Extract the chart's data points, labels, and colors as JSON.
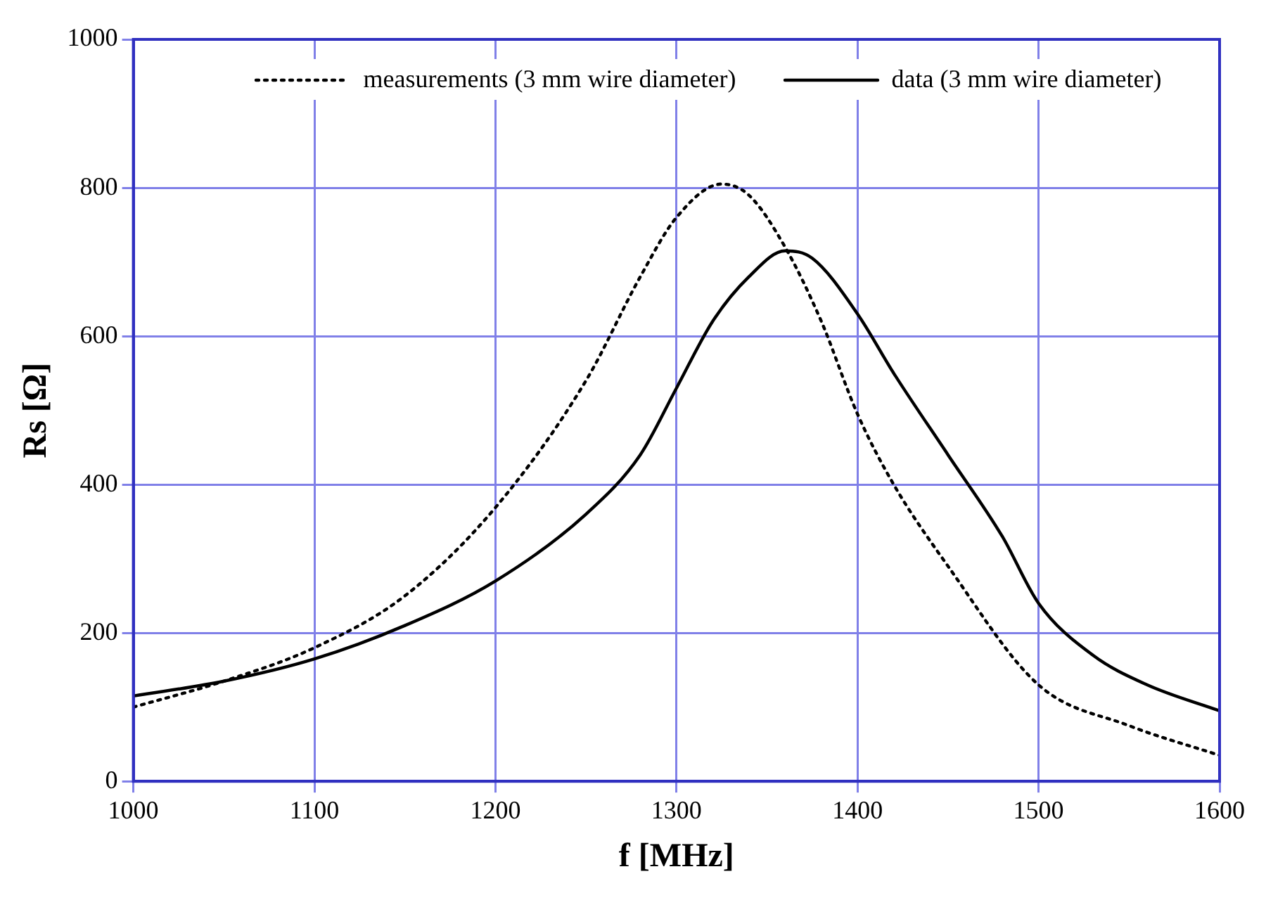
{
  "chart_data": {
    "type": "line",
    "xlabel": "f [MHz]",
    "ylabel": "Rs [Ω]",
    "xlim": [
      1000,
      1600
    ],
    "ylim": [
      0,
      1000
    ],
    "xticks": [
      1000,
      1100,
      1200,
      1300,
      1400,
      1500,
      1600
    ],
    "yticks": [
      0,
      200,
      400,
      600,
      800,
      1000
    ],
    "grid": true,
    "legend": "top",
    "marker": "none",
    "series": [
      {
        "name": "measurements (3 mm wire diameter)",
        "color": "#000000",
        "line_style": "dotted",
        "x": [
          1000,
          1050,
          1100,
          1150,
          1200,
          1250,
          1280,
          1300,
          1325,
          1340,
          1360,
          1380,
          1400,
          1420,
          1450,
          1500,
          1550,
          1600
        ],
        "values": [
          100,
          135,
          180,
          250,
          369,
          540,
          680,
          760,
          805,
          790,
          720,
          620,
          495,
          400,
          290,
          130,
          75,
          35
        ]
      },
      {
        "name": "data (3 mm wire diameter)",
        "color": "#000000",
        "line_style": "solid",
        "x": [
          1000,
          1050,
          1100,
          1150,
          1200,
          1250,
          1280,
          1300,
          1320,
          1340,
          1360,
          1375,
          1400,
          1420,
          1450,
          1480,
          1500,
          1530,
          1560,
          1600
        ],
        "values": [
          115,
          135,
          165,
          210,
          270,
          360,
          440,
          530,
          620,
          680,
          715,
          705,
          630,
          550,
          440,
          330,
          240,
          170,
          130,
          95
        ]
      }
    ]
  }
}
